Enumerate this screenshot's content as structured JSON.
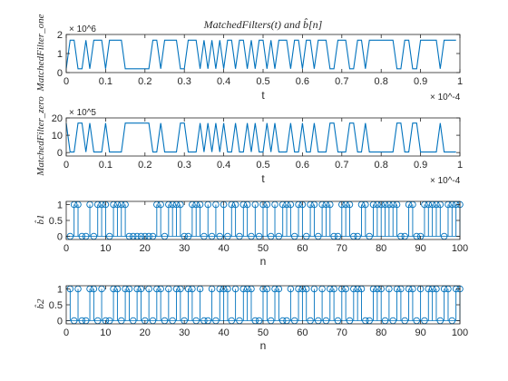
{
  "figure": {
    "background": "#ffffff",
    "line_color": "#0072bd",
    "axis_color": "#262626"
  },
  "chart_data": [
    {
      "type": "line",
      "title": "MatchedFilters(t) and b̂[n]",
      "xlabel": "t",
      "ylabel": "MatchedFilter_one",
      "x_exponent_label": "× 10^-4",
      "y_exponent_label": "× 10^6",
      "xlim": [
        0,
        1
      ],
      "ylim": [
        0,
        2
      ],
      "x_ticks": [
        "0",
        "0.1",
        "0.2",
        "0.3",
        "0.4",
        "0.5",
        "0.6",
        "0.7",
        "0.8",
        "0.9",
        "1"
      ],
      "y_ticks": [
        "0",
        "1",
        "2"
      ],
      "grid": false,
      "series": [
        {
          "x": [
            0,
            0.01,
            0.02,
            0.03,
            0.04,
            0.05,
            0.06,
            0.07,
            0.08,
            0.09,
            0.1,
            0.11,
            0.12,
            0.13,
            0.14,
            0.15,
            0.16,
            0.17,
            0.18,
            0.19,
            0.2,
            0.21,
            0.22,
            0.23,
            0.24,
            0.25,
            0.26,
            0.27,
            0.28,
            0.29,
            0.3,
            0.31,
            0.32,
            0.33,
            0.34,
            0.35,
            0.36,
            0.37,
            0.38,
            0.39,
            0.4,
            0.41,
            0.42,
            0.43,
            0.44,
            0.45,
            0.46,
            0.47,
            0.48,
            0.49,
            0.5,
            0.51,
            0.52,
            0.53,
            0.54,
            0.55,
            0.56,
            0.57,
            0.58,
            0.59,
            0.6,
            0.61,
            0.62,
            0.63,
            0.64,
            0.65,
            0.66,
            0.67,
            0.68,
            0.69,
            0.7,
            0.71,
            0.72,
            0.73,
            0.74,
            0.75,
            0.76,
            0.77,
            0.78,
            0.79,
            0.8,
            0.81,
            0.82,
            0.83,
            0.84,
            0.85,
            0.86,
            0.87,
            0.88,
            0.89,
            0.9,
            0.91,
            0.92,
            0.93,
            0.94,
            0.95,
            0.96,
            0.97,
            0.98,
            0.99
          ],
          "y": [
            0.2,
            1.7,
            1.7,
            0.2,
            0.2,
            1.7,
            0.2,
            1.7,
            1.7,
            1.7,
            0.2,
            1.7,
            1.7,
            1.7,
            1.7,
            0.2,
            0.2,
            0.2,
            0.2,
            0.2,
            0.2,
            0.2,
            1.7,
            1.7,
            0.2,
            1.7,
            1.7,
            1.7,
            1.7,
            0.2,
            0.2,
            1.7,
            1.7,
            1.7,
            0.2,
            1.7,
            0.2,
            1.7,
            0.2,
            1.7,
            0.2,
            1.7,
            1.7,
            0.2,
            1.7,
            1.7,
            0.2,
            1.7,
            0.2,
            1.7,
            1.7,
            0.2,
            1.7,
            0.2,
            1.7,
            1.7,
            1.7,
            0.2,
            1.7,
            1.7,
            0.2,
            1.7,
            1.7,
            0.2,
            1.7,
            1.7,
            1.7,
            0.2,
            0.2,
            1.7,
            1.7,
            1.7,
            0.2,
            0.2,
            1.7,
            1.7,
            0.2,
            1.7,
            1.7,
            1.7,
            1.7,
            1.7,
            1.7,
            1.7,
            0.2,
            0.2,
            1.7,
            1.7,
            0.2,
            0.2,
            1.7,
            1.7,
            1.7,
            1.7,
            1.7,
            0.2,
            1.7,
            1.7,
            1.7,
            1.7
          ]
        }
      ]
    },
    {
      "type": "line",
      "xlabel": "t",
      "ylabel": "MatchedFilter_zero",
      "x_exponent_label": "× 10^-4",
      "y_exponent_label": "× 10^5",
      "xlim": [
        0,
        1
      ],
      "ylim": [
        -2,
        20
      ],
      "x_ticks": [
        "0",
        "0.1",
        "0.2",
        "0.3",
        "0.4",
        "0.5",
        "0.6",
        "0.7",
        "0.8",
        "0.9",
        "1"
      ],
      "y_ticks": [
        "0",
        "10",
        "20"
      ],
      "grid": false,
      "series": [
        {
          "x": [
            0,
            0.01,
            0.02,
            0.03,
            0.04,
            0.05,
            0.06,
            0.07,
            0.08,
            0.09,
            0.1,
            0.11,
            0.12,
            0.13,
            0.14,
            0.15,
            0.16,
            0.17,
            0.18,
            0.19,
            0.2,
            0.21,
            0.22,
            0.23,
            0.24,
            0.25,
            0.26,
            0.27,
            0.28,
            0.29,
            0.3,
            0.31,
            0.32,
            0.33,
            0.34,
            0.35,
            0.36,
            0.37,
            0.38,
            0.39,
            0.4,
            0.41,
            0.42,
            0.43,
            0.44,
            0.45,
            0.46,
            0.47,
            0.48,
            0.49,
            0.5,
            0.51,
            0.52,
            0.53,
            0.54,
            0.55,
            0.56,
            0.57,
            0.58,
            0.59,
            0.6,
            0.61,
            0.62,
            0.63,
            0.64,
            0.65,
            0.66,
            0.67,
            0.68,
            0.69,
            0.7,
            0.71,
            0.72,
            0.73,
            0.74,
            0.75,
            0.76,
            0.77,
            0.78,
            0.79,
            0.8,
            0.81,
            0.82,
            0.83,
            0.84,
            0.85,
            0.86,
            0.87,
            0.88,
            0.89,
            0.9,
            0.91,
            0.92,
            0.93,
            0.94,
            0.95,
            0.96,
            0.97,
            0.98,
            0.99
          ],
          "y": [
            17,
            0.3,
            0.3,
            17,
            17,
            0.3,
            17,
            0.3,
            0.3,
            0.3,
            17,
            0.3,
            0.3,
            0.3,
            0.3,
            17,
            17,
            17,
            17,
            17,
            17,
            17,
            0.3,
            0.3,
            17,
            0.3,
            0.3,
            0.3,
            0.3,
            17,
            17,
            0.3,
            0.3,
            0.3,
            17,
            0.3,
            17,
            0.3,
            17,
            0.3,
            17,
            0.3,
            0.3,
            17,
            0.3,
            0.3,
            17,
            0.3,
            17,
            0.3,
            0.3,
            17,
            0.3,
            17,
            0.3,
            0.3,
            0.3,
            17,
            0.3,
            0.3,
            17,
            0.3,
            0.3,
            17,
            0.3,
            0.3,
            0.3,
            17,
            17,
            0.3,
            0.3,
            0.3,
            17,
            17,
            0.3,
            0.3,
            17,
            0.3,
            0.3,
            0.3,
            0.3,
            0.3,
            0.3,
            0.3,
            17,
            17,
            0.3,
            0.3,
            17,
            17,
            0.3,
            0.3,
            0.3,
            0.3,
            0.3,
            17,
            0.3,
            0.3,
            0.3,
            0.3
          ]
        }
      ]
    },
    {
      "type": "stem",
      "xlabel": "n",
      "ylabel": "b̂1",
      "xlim": [
        0,
        100
      ],
      "ylim": [
        -0.1,
        1.1
      ],
      "x_ticks": [
        "0",
        "10",
        "20",
        "30",
        "40",
        "50",
        "60",
        "70",
        "80",
        "90",
        "100"
      ],
      "y_ticks": [
        "0",
        "0.5",
        "1"
      ],
      "grid": false,
      "series": [
        {
          "x": [
            1,
            2,
            3,
            4,
            5,
            6,
            7,
            8,
            9,
            10,
            11,
            12,
            13,
            14,
            15,
            16,
            17,
            18,
            19,
            20,
            21,
            22,
            23,
            24,
            25,
            26,
            27,
            28,
            29,
            30,
            31,
            32,
            33,
            34,
            35,
            36,
            37,
            38,
            39,
            40,
            41,
            42,
            43,
            44,
            45,
            46,
            47,
            48,
            49,
            50,
            51,
            52,
            53,
            54,
            55,
            56,
            57,
            58,
            59,
            60,
            61,
            62,
            63,
            64,
            65,
            66,
            67,
            68,
            69,
            70,
            71,
            72,
            73,
            74,
            75,
            76,
            77,
            78,
            79,
            80,
            81,
            82,
            83,
            84,
            85,
            86,
            87,
            88,
            89,
            90,
            91,
            92,
            93,
            94,
            95,
            96,
            97,
            98,
            99,
            100
          ],
          "y": [
            0,
            1,
            1,
            0,
            0,
            1,
            0,
            1,
            1,
            1,
            0,
            1,
            1,
            1,
            1,
            0,
            0,
            0,
            0,
            0,
            0,
            0,
            1,
            1,
            0,
            1,
            1,
            1,
            1,
            0,
            0,
            1,
            1,
            1,
            0,
            1,
            0,
            1,
            0,
            1,
            0,
            1,
            1,
            0,
            1,
            1,
            0,
            1,
            0,
            1,
            1,
            0,
            1,
            0,
            1,
            1,
            1,
            0,
            1,
            1,
            0,
            1,
            1,
            0,
            1,
            1,
            1,
            0,
            0,
            1,
            1,
            1,
            0,
            0,
            1,
            1,
            0,
            1,
            1,
            1,
            1,
            1,
            1,
            1,
            0,
            0,
            1,
            1,
            0,
            0,
            1,
            1,
            1,
            1,
            1,
            0,
            1,
            1,
            1,
            1
          ]
        }
      ]
    },
    {
      "type": "stem",
      "xlabel": "n",
      "ylabel": "b̂2",
      "xlim": [
        0,
        100
      ],
      "ylim": [
        -0.1,
        1.1
      ],
      "x_ticks": [
        "0",
        "10",
        "20",
        "30",
        "40",
        "50",
        "60",
        "70",
        "80",
        "90",
        "100"
      ],
      "y_ticks": [
        "0",
        "0.5",
        "1"
      ],
      "grid": false,
      "series": [
        {
          "x": [
            1,
            2,
            3,
            4,
            5,
            6,
            7,
            8,
            9,
            10,
            11,
            12,
            13,
            14,
            15,
            16,
            17,
            18,
            19,
            20,
            21,
            22,
            23,
            24,
            25,
            26,
            27,
            28,
            29,
            30,
            31,
            32,
            33,
            34,
            35,
            36,
            37,
            38,
            39,
            40,
            41,
            42,
            43,
            44,
            45,
            46,
            47,
            48,
            49,
            50,
            51,
            52,
            53,
            54,
            55,
            56,
            57,
            58,
            59,
            60,
            61,
            62,
            63,
            64,
            65,
            66,
            67,
            68,
            69,
            70,
            71,
            72,
            73,
            74,
            75,
            76,
            77,
            78,
            79,
            80,
            81,
            82,
            83,
            84,
            85,
            86,
            87,
            88,
            89,
            90,
            91,
            92,
            93,
            94,
            95,
            96,
            97,
            98,
            99,
            100
          ],
          "y": [
            1,
            0,
            1,
            0,
            0,
            1,
            1,
            0,
            1,
            0,
            0,
            1,
            1,
            0,
            1,
            1,
            0,
            1,
            1,
            0,
            1,
            0,
            1,
            1,
            0,
            1,
            0,
            1,
            1,
            0,
            1,
            1,
            0,
            1,
            0,
            0,
            1,
            0,
            1,
            1,
            1,
            0,
            1,
            0,
            1,
            1,
            1,
            0,
            0,
            1,
            1,
            0,
            1,
            1,
            0,
            0,
            1,
            0,
            1,
            1,
            1,
            0,
            1,
            0,
            1,
            0,
            1,
            1,
            0,
            1,
            1,
            0,
            1,
            1,
            1,
            0,
            0,
            1,
            1,
            1,
            0,
            1,
            0,
            1,
            1,
            0,
            1,
            1,
            0,
            1,
            0,
            1,
            1,
            1,
            0,
            1,
            1,
            0,
            1,
            1
          ]
        }
      ]
    }
  ]
}
